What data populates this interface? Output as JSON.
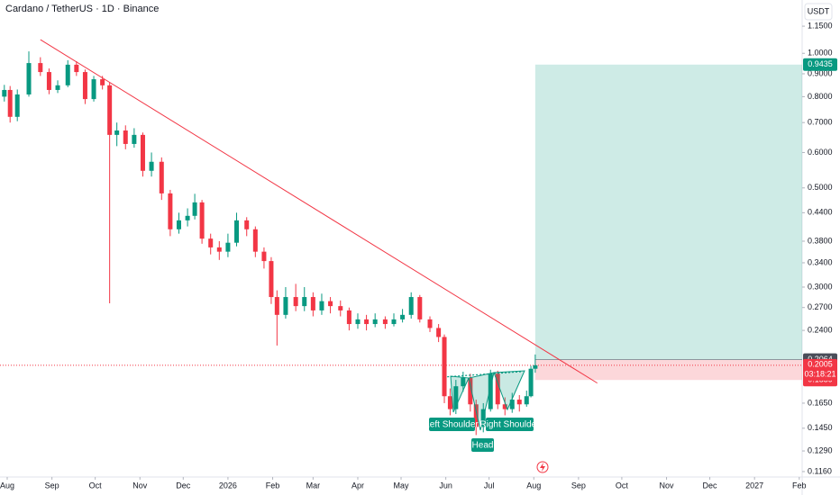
{
  "chart_data": {
    "type": "candlestick",
    "title": "Cardano / TetherUS · 1D · Binance",
    "currency": "USDT",
    "log_scale": true,
    "up_color": "#089981",
    "down_color": "#f23645",
    "xlim": [
      -5,
      551
    ],
    "ylim": [
      0.1128,
      1.316
    ],
    "xticks": [
      {
        "value": 0,
        "label": "Aug"
      },
      {
        "value": 31,
        "label": "Sep"
      },
      {
        "value": 61,
        "label": "Oct"
      },
      {
        "value": 92,
        "label": "Nov"
      },
      {
        "value": 122,
        "label": "Dec"
      },
      {
        "value": 153,
        "label": "2026"
      },
      {
        "value": 184,
        "label": "Feb"
      },
      {
        "value": 212,
        "label": "Mar"
      },
      {
        "value": 243,
        "label": "Apr"
      },
      {
        "value": 273,
        "label": "May"
      },
      {
        "value": 304,
        "label": "Jun"
      },
      {
        "value": 334,
        "label": "Jul"
      },
      {
        "value": 365,
        "label": "Aug"
      },
      {
        "value": 396,
        "label": "Sep"
      },
      {
        "value": 426,
        "label": "Oct"
      },
      {
        "value": 457,
        "label": "Nov"
      },
      {
        "value": 487,
        "label": "Dec"
      },
      {
        "value": 518,
        "label": "2027"
      },
      {
        "value": 549,
        "label": "Feb"
      }
    ],
    "yticks": [
      {
        "value": 1.15,
        "label": "1.1500"
      },
      {
        "value": 1.0,
        "label": "1.0000"
      },
      {
        "value": 0.9,
        "label": "0.9000"
      },
      {
        "value": 0.8,
        "label": "0.8000"
      },
      {
        "value": 0.7,
        "label": "0.7000"
      },
      {
        "value": 0.6,
        "label": "0.6000"
      },
      {
        "value": 0.5,
        "label": "0.5000"
      },
      {
        "value": 0.44,
        "label": "0.4400"
      },
      {
        "value": 0.38,
        "label": "0.3800"
      },
      {
        "value": 0.34,
        "label": "0.3400"
      },
      {
        "value": 0.3,
        "label": "0.3000"
      },
      {
        "value": 0.27,
        "label": "0.2700"
      },
      {
        "value": 0.24,
        "label": "0.2400"
      },
      {
        "value": 0.165,
        "label": "0.1650"
      },
      {
        "value": 0.145,
        "label": "0.1450"
      },
      {
        "value": 0.129,
        "label": "0.1290"
      },
      {
        "value": 0.116,
        "label": "0.1160"
      }
    ],
    "candles": {
      "x": [
        -2,
        2,
        7,
        15,
        23,
        29,
        35,
        42,
        48,
        54,
        60,
        66,
        71,
        76,
        82,
        88,
        94,
        100,
        107,
        113,
        119,
        125,
        130,
        135,
        141,
        147,
        153,
        159,
        166,
        172,
        178,
        183,
        187,
        193,
        200,
        206,
        212,
        218,
        224,
        231,
        237,
        243,
        249,
        255,
        262,
        268,
        274,
        280,
        286,
        293,
        299,
        303,
        307,
        311,
        316,
        321,
        325,
        330,
        335,
        340,
        345,
        350,
        355,
        360,
        363,
        366
      ],
      "open": [
        0.8,
        0.828,
        0.721,
        0.809,
        0.951,
        0.908,
        0.828,
        0.848,
        0.943,
        0.908,
        0.79,
        0.875,
        0.848,
        0.657,
        0.672,
        0.627,
        0.657,
        0.546,
        0.572,
        0.486,
        0.404,
        0.423,
        0.433,
        0.464,
        0.385,
        0.368,
        0.36,
        0.377,
        0.423,
        0.404,
        0.36,
        0.343,
        0.285,
        0.26,
        0.285,
        0.272,
        0.285,
        0.266,
        0.279,
        0.272,
        0.266,
        0.248,
        0.254,
        0.248,
        0.254,
        0.248,
        0.254,
        0.26,
        0.285,
        0.254,
        0.243,
        0.232,
        0.171,
        0.16,
        0.18,
        0.188,
        0.164,
        0.146,
        0.16,
        0.192,
        0.164,
        0.16,
        0.168,
        0.164,
        0.171,
        0.197
      ],
      "high": [
        0.85,
        0.845,
        0.83,
        1.01,
        0.98,
        0.925,
        0.87,
        0.965,
        0.96,
        0.92,
        0.89,
        0.89,
        0.86,
        0.7,
        0.69,
        0.68,
        0.665,
        0.6,
        0.585,
        0.495,
        0.44,
        0.45,
        0.485,
        0.47,
        0.395,
        0.38,
        0.395,
        0.44,
        0.43,
        0.41,
        0.368,
        0.35,
        0.295,
        0.3,
        0.305,
        0.3,
        0.292,
        0.29,
        0.285,
        0.28,
        0.27,
        0.262,
        0.26,
        0.262,
        0.258,
        0.262,
        0.268,
        0.292,
        0.288,
        0.258,
        0.248,
        0.235,
        0.178,
        0.186,
        0.194,
        0.192,
        0.168,
        0.165,
        0.196,
        0.195,
        0.17,
        0.174,
        0.172,
        0.176,
        0.2,
        0.212
      ],
      "low": [
        0.78,
        0.7,
        0.705,
        0.8,
        0.89,
        0.81,
        0.815,
        0.84,
        0.89,
        0.77,
        0.78,
        0.83,
        0.276,
        0.62,
        0.61,
        0.615,
        0.53,
        0.53,
        0.47,
        0.39,
        0.395,
        0.41,
        0.425,
        0.375,
        0.355,
        0.345,
        0.35,
        0.37,
        0.39,
        0.35,
        0.33,
        0.275,
        0.222,
        0.255,
        0.265,
        0.265,
        0.258,
        0.26,
        0.262,
        0.258,
        0.24,
        0.242,
        0.24,
        0.244,
        0.242,
        0.245,
        0.25,
        0.255,
        0.25,
        0.238,
        0.226,
        0.165,
        0.155,
        0.156,
        0.175,
        0.158,
        0.14,
        0.142,
        0.158,
        0.16,
        0.155,
        0.157,
        0.158,
        0.162,
        0.17,
        0.193
      ],
      "close": [
        0.828,
        0.721,
        0.809,
        0.951,
        0.908,
        0.828,
        0.848,
        0.943,
        0.908,
        0.79,
        0.875,
        0.848,
        0.657,
        0.672,
        0.627,
        0.657,
        0.546,
        0.572,
        0.486,
        0.404,
        0.423,
        0.433,
        0.464,
        0.385,
        0.368,
        0.36,
        0.377,
        0.423,
        0.404,
        0.36,
        0.343,
        0.285,
        0.26,
        0.285,
        0.272,
        0.285,
        0.266,
        0.279,
        0.272,
        0.266,
        0.248,
        0.254,
        0.248,
        0.254,
        0.248,
        0.254,
        0.26,
        0.285,
        0.254,
        0.243,
        0.232,
        0.171,
        0.16,
        0.18,
        0.188,
        0.164,
        0.146,
        0.16,
        0.192,
        0.164,
        0.16,
        0.168,
        0.164,
        0.171,
        0.197,
        0.2005
      ]
    },
    "trendline": {
      "x": [
        23,
        409
      ],
      "y": [
        1.073,
        0.183
      ],
      "color": "#f23645"
    },
    "neckline": {
      "x": [
        305,
        356
      ],
      "y": [
        0.189,
        0.194
      ],
      "color": "#089981"
    },
    "position": {
      "x_start": 366,
      "x_end": 551,
      "entry": 0.2064,
      "target": 0.9435,
      "stop": 0.1859
    },
    "last_price": 0.2005,
    "countdown": "03:18:21",
    "annotations": [
      "Left Shoulder",
      "Head",
      "Right Shoulder"
    ]
  }
}
